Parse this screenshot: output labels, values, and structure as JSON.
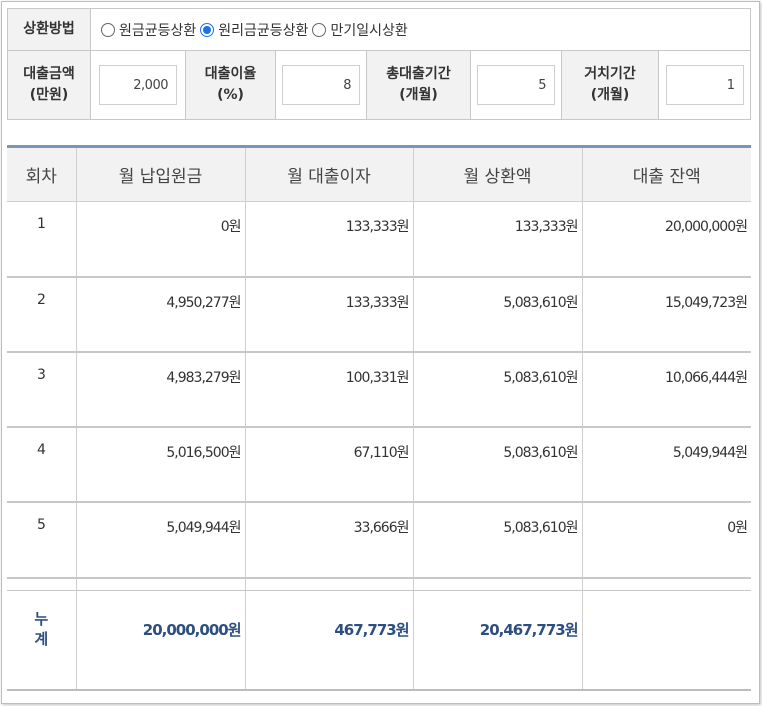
{
  "form": {
    "method_label": "상환방법",
    "methods": [
      {
        "label": "원금균등상환",
        "checked": false
      },
      {
        "label": "원리금균등상환",
        "checked": true
      },
      {
        "label": "만기일시상환",
        "checked": false
      }
    ],
    "fields": [
      {
        "label_line1": "대출금액",
        "label_line2": "(만원)",
        "value": "2,000"
      },
      {
        "label_line1": "대출이율",
        "label_line2": "(%)",
        "value": "8"
      },
      {
        "label_line1": "총대출기간",
        "label_line2": "(개월)",
        "value": "5"
      },
      {
        "label_line1": "거치기간",
        "label_line2": "(개월)",
        "value": "1"
      }
    ]
  },
  "table": {
    "headers": [
      "회차",
      "월 납입원금",
      "월 대출이자",
      "월 상환액",
      "대출 잔액"
    ],
    "rows": [
      [
        "1",
        "0원",
        "133,333원",
        "133,333원",
        "20,000,000원"
      ],
      [
        "2",
        "4,950,277원",
        "133,333원",
        "5,083,610원",
        "15,049,723원"
      ],
      [
        "3",
        "4,983,279원",
        "100,331원",
        "5,083,610원",
        "10,066,444원"
      ],
      [
        "4",
        "5,016,500원",
        "67,110원",
        "5,083,610원",
        "5,049,944원"
      ],
      [
        "5",
        "5,049,944원",
        "33,666원",
        "5,083,610원",
        "0원"
      ]
    ],
    "total": {
      "label_line1": "누",
      "label_line2": "계",
      "principal": "20,000,000원",
      "interest": "467,773원",
      "payment": "20,467,773원",
      "balance": ""
    }
  },
  "colors": {
    "accent": "#1a73e8",
    "header_border": "#7a95b9",
    "total_text": "#2d4f80"
  }
}
